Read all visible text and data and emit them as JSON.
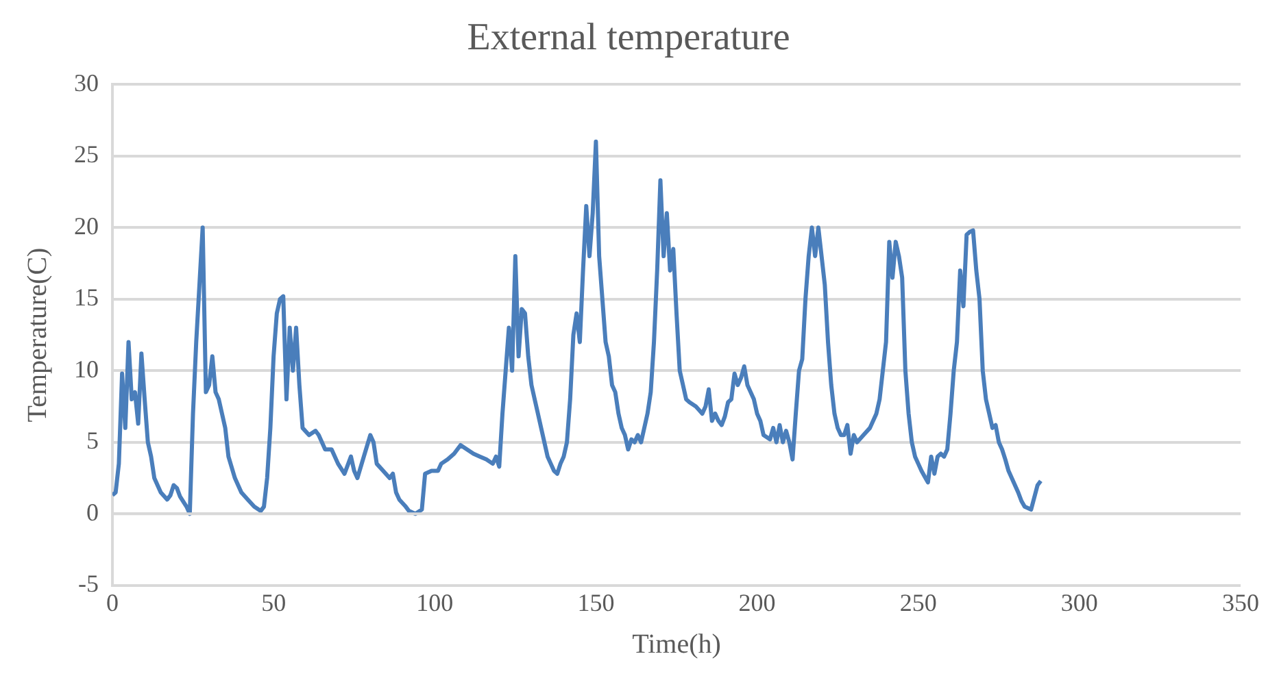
{
  "chart_data": {
    "type": "line",
    "title": "External temperature",
    "xlabel": "Time(h)",
    "ylabel": "Temperature(C)",
    "x": [
      0,
      1,
      2,
      3,
      4,
      5,
      6,
      7,
      8,
      9,
      10,
      11,
      12,
      13,
      15,
      17,
      18,
      19,
      20,
      21,
      23,
      24,
      25,
      26,
      27,
      28,
      29,
      30,
      31,
      32,
      33,
      35,
      36,
      38,
      40,
      42,
      44,
      46,
      47,
      48,
      49,
      50,
      51,
      52,
      53,
      54,
      55,
      56,
      57,
      58,
      59,
      61,
      63,
      64,
      66,
      68,
      70,
      72,
      74,
      75,
      76,
      78,
      80,
      81,
      82,
      84,
      86,
      87,
      88,
      89,
      91,
      92,
      94,
      96,
      97,
      99,
      101,
      102,
      104,
      106,
      108,
      110,
      112,
      114,
      116,
      118,
      119,
      120,
      121,
      122,
      123,
      124,
      125,
      126,
      127,
      128,
      129,
      130,
      131,
      132,
      133,
      134,
      135,
      136,
      137,
      138,
      139,
      140,
      141,
      142,
      143,
      144,
      145,
      146,
      147,
      148,
      149,
      150,
      151,
      152,
      153,
      154,
      155,
      156,
      157,
      158,
      159,
      160,
      161,
      162,
      163,
      164,
      165,
      166,
      167,
      168,
      169,
      170,
      171,
      172,
      173,
      174,
      175,
      176,
      177,
      178,
      179,
      181,
      183,
      184,
      185,
      186,
      187,
      188,
      189,
      190,
      191,
      192,
      193,
      194,
      195,
      196,
      197,
      198,
      199,
      200,
      201,
      202,
      204,
      205,
      206,
      207,
      208,
      209,
      210,
      211,
      212,
      213,
      214,
      215,
      216,
      217,
      218,
      219,
      220,
      221,
      222,
      223,
      224,
      225,
      226,
      227,
      228,
      229,
      230,
      231,
      233,
      235,
      237,
      238,
      239,
      240,
      241,
      242,
      243,
      244,
      245,
      246,
      247,
      248,
      249,
      250,
      251,
      252,
      253,
      254,
      255,
      256,
      257,
      258,
      259,
      260,
      261,
      262,
      263,
      264,
      265,
      266,
      267,
      268,
      269,
      270,
      271,
      272,
      273,
      274,
      275,
      276,
      277,
      278,
      279,
      280,
      281,
      282,
      283,
      285,
      287,
      288
    ],
    "series": [
      {
        "color": "#4a7ebb",
        "values": [
          1.3,
          1.5,
          3.5,
          9.8,
          6,
          12,
          8,
          8.5,
          6.3,
          11.2,
          8,
          5,
          4,
          2.5,
          1.5,
          1,
          1.3,
          2,
          1.8,
          1.2,
          0.5,
          0,
          7,
          12,
          16,
          20,
          8.5,
          9,
          11,
          8.5,
          8,
          6,
          4,
          2.5,
          1.5,
          1,
          0.5,
          0.2,
          0.5,
          2.5,
          6,
          11,
          14,
          15,
          15.2,
          8,
          13,
          10,
          13,
          9,
          6,
          5.5,
          5.8,
          5.5,
          4.5,
          4.5,
          3.5,
          2.8,
          4,
          3,
          2.5,
          4,
          5.5,
          5,
          3.5,
          3,
          2.5,
          2.8,
          1.5,
          1,
          0.5,
          0.2,
          0,
          0.3,
          2.8,
          3,
          3,
          3.5,
          3.8,
          4.2,
          4.8,
          4.5,
          4.2,
          4,
          3.8,
          3.5,
          4,
          3.3,
          7,
          10,
          13,
          10,
          18,
          11,
          14.3,
          14,
          11,
          9,
          8,
          7,
          6,
          5,
          4,
          3.5,
          3,
          2.8,
          3.5,
          4,
          5,
          8,
          12.5,
          14,
          12,
          17,
          21.5,
          18,
          21,
          26,
          18,
          15,
          12,
          11,
          9,
          8.5,
          7,
          6,
          5.5,
          4.5,
          5.2,
          5,
          5.5,
          5,
          6,
          7,
          8.5,
          12,
          17,
          23.3,
          18,
          21,
          17,
          18.5,
          14,
          10,
          9,
          8,
          7.8,
          7.5,
          7,
          7.5,
          8.7,
          6.5,
          7,
          6.5,
          6.2,
          6.8,
          7.8,
          8,
          9.8,
          9,
          9.5,
          10.3,
          9,
          8.5,
          8,
          7,
          6.5,
          5.5,
          5.2,
          6,
          5,
          6.2,
          5,
          5.8,
          5,
          3.8,
          7,
          10,
          10.8,
          15,
          18,
          20,
          18,
          20,
          18,
          16,
          12,
          9,
          7,
          6,
          5.5,
          5.5,
          6.2,
          4.2,
          5.5,
          5,
          5.5,
          6,
          7,
          8,
          10,
          12,
          19,
          16.5,
          19,
          18,
          16.5,
          10,
          7,
          5,
          4,
          3.5,
          3,
          2.6,
          2.2,
          4,
          2.8,
          4,
          4.2,
          4,
          4.5,
          7,
          10,
          12,
          17,
          14.5,
          19.5,
          19.7,
          19.8,
          17,
          15,
          10,
          8,
          7,
          6,
          6.2,
          5,
          4.5,
          3.8,
          3,
          2.5,
          2,
          1.5,
          0.9,
          0.5,
          0.3,
          2,
          2.3
        ]
      }
    ],
    "xlim": [
      0,
      350
    ],
    "xticks": [
      0,
      50,
      100,
      150,
      200,
      250,
      300,
      350
    ],
    "ylim": [
      -5,
      30
    ],
    "yticks": [
      -5,
      0,
      5,
      10,
      15,
      20,
      25,
      30
    ],
    "grid": "y",
    "legend": false,
    "marker": "none",
    "line_style": "solid"
  }
}
